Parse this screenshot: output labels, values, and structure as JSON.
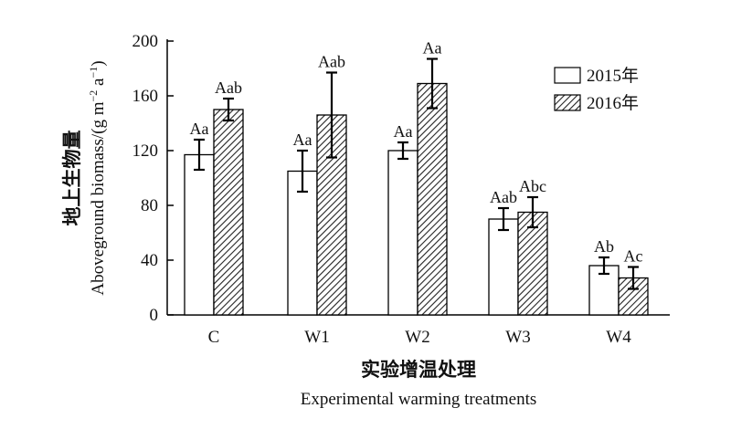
{
  "chart_data": {
    "type": "bar",
    "categories": [
      "C",
      "W1",
      "W2",
      "W3",
      "W4"
    ],
    "series": [
      {
        "name": "2015年",
        "pattern": "none",
        "values": [
          117,
          105,
          120,
          70,
          36
        ],
        "errors": [
          11,
          15,
          6,
          8,
          6
        ],
        "labels": [
          "Aa",
          "Aa",
          "Aa",
          "Aab",
          "Ab"
        ]
      },
      {
        "name": "2016年",
        "pattern": "diagonal-hatch",
        "values": [
          150,
          146,
          169,
          75,
          27
        ],
        "errors": [
          8,
          31,
          18,
          11,
          8
        ],
        "labels": [
          "Aab",
          "Aab",
          "Aa",
          "Abc",
          "Ac"
        ]
      }
    ],
    "xlabel_cn": "实验增温处理",
    "xlabel_en": "Experimental warming treatments",
    "ylabel_cn": "地上生物量",
    "ylabel_en_prefix": "Aboveground biomass/(g m",
    "ylabel_en_mid": " a",
    "ylabel_en_suffix": ")",
    "ylabel_sup1": "−2",
    "ylabel_sup2": "−1",
    "ylim": [
      0,
      200
    ],
    "yticks": [
      "0",
      "40",
      "80",
      "120",
      "160",
      "200"
    ],
    "grid": false,
    "legend_position": "top-right"
  }
}
